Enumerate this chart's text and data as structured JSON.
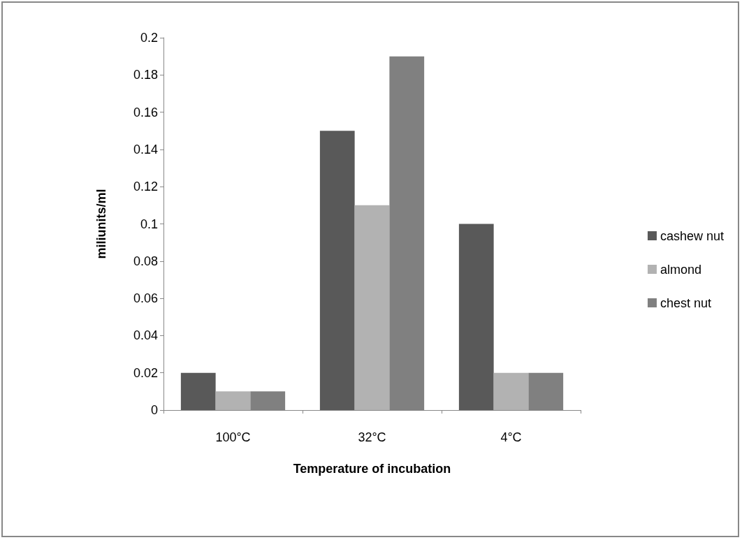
{
  "chart_data": {
    "type": "bar",
    "xlabel": "Temperature of incubation",
    "ylabel": "miliunits/ml",
    "categories": [
      "100°C",
      "32°C",
      "4°C"
    ],
    "series": [
      {
        "name": "cashew nut",
        "color": "#595959",
        "values": [
          0.02,
          0.15,
          0.1
        ]
      },
      {
        "name": "almond",
        "color": "#b2b2b2",
        "values": [
          0.01,
          0.11,
          0.02
        ]
      },
      {
        "name": "chest nut",
        "color": "#808080",
        "values": [
          0.01,
          0.19,
          0.02
        ]
      }
    ],
    "ylim": [
      0,
      0.2
    ],
    "yticks": [
      0,
      0.02,
      0.04,
      0.06,
      0.08,
      0.1,
      0.12,
      0.14,
      0.16,
      0.18,
      0.2
    ],
    "grid": false,
    "legend": "right"
  }
}
